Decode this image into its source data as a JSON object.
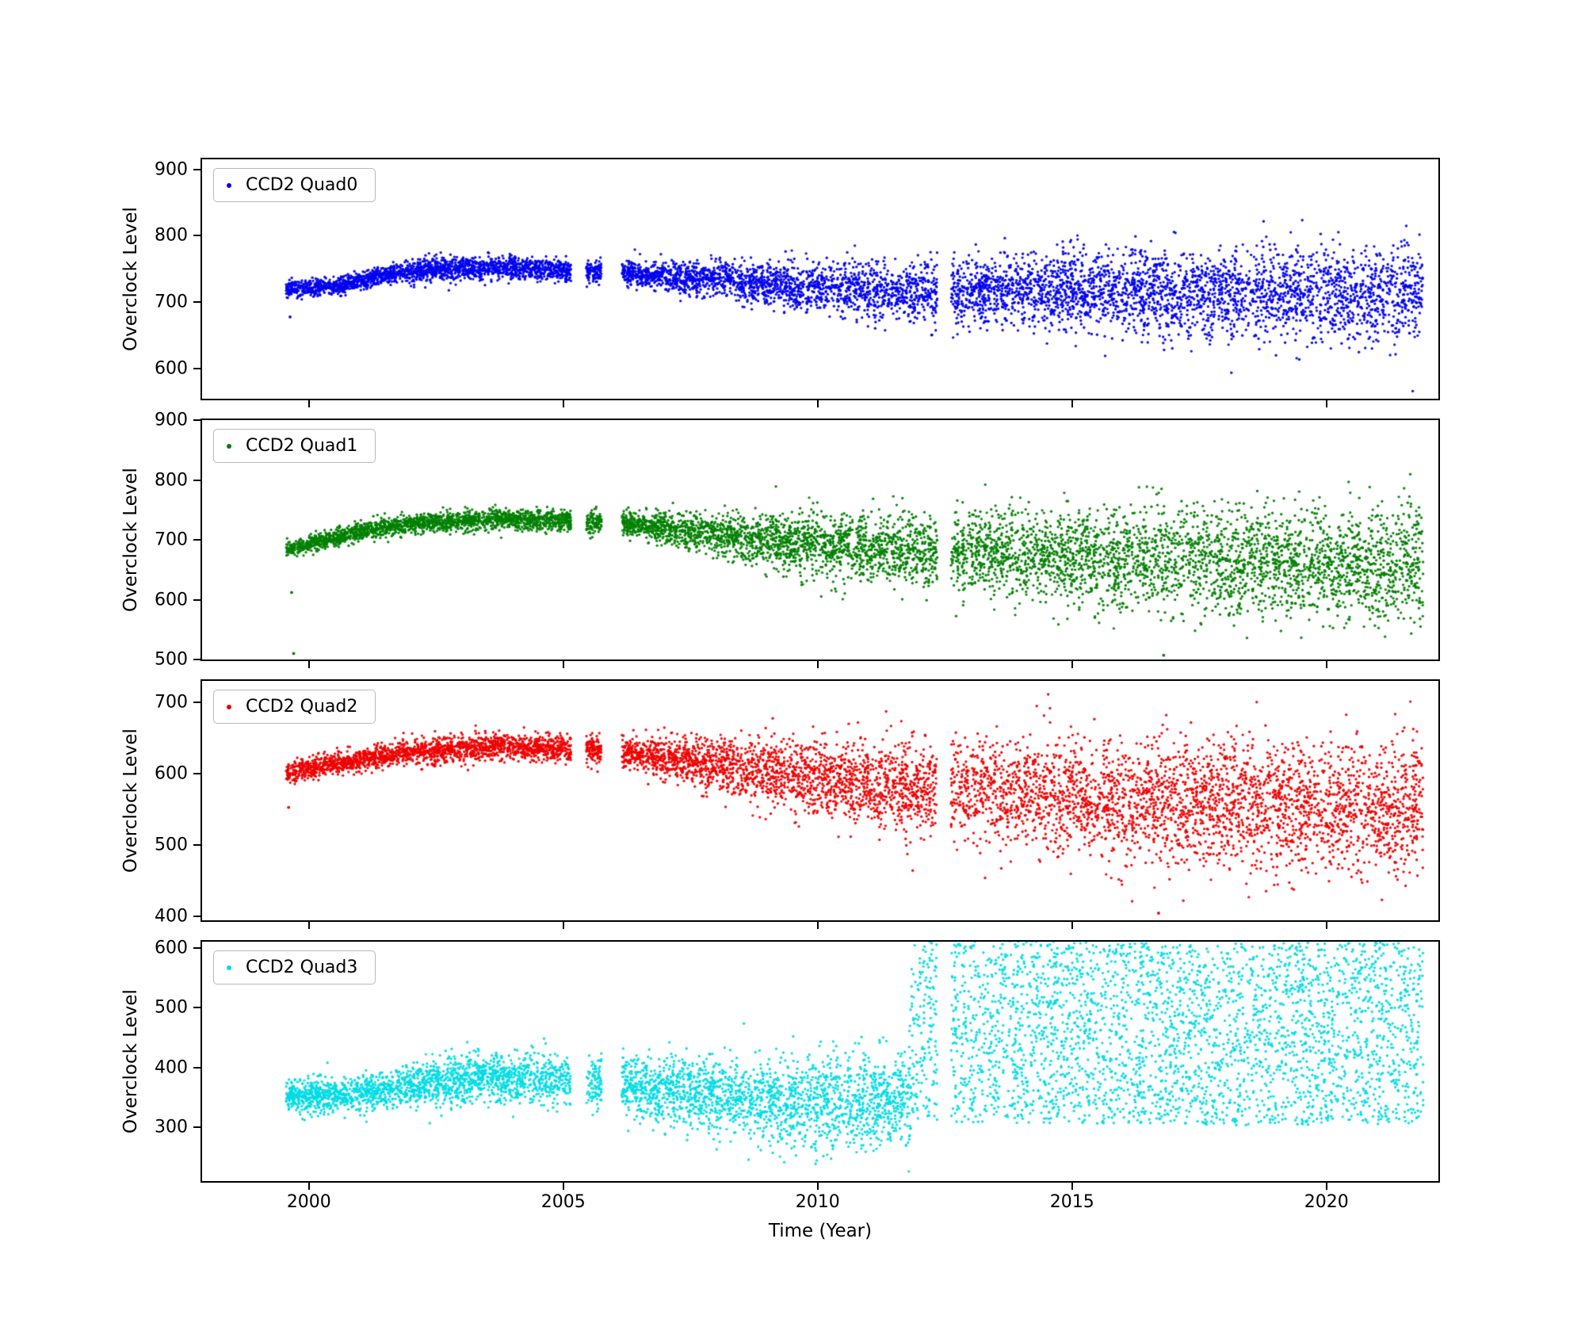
{
  "figure": {
    "background": "#ffffff",
    "frame_color": "#000000"
  },
  "chart_data": {
    "type": "scatter",
    "title": "",
    "xlabel": "Time (Year)",
    "ylabel": "Overclock Level",
    "xlim": [
      1997.9,
      2022.2
    ],
    "x_ticks": [
      2000,
      2005,
      2010,
      2015,
      2020
    ],
    "x_data_range": [
      1999.55,
      2021.9
    ],
    "x_gaps": [
      [
        2005.15,
        2005.45
      ],
      [
        2005.75,
        2006.15
      ],
      [
        2012.35,
        2012.62
      ]
    ],
    "points_per_year": 330,
    "marker": "dot",
    "legend_position": "upper left",
    "grid": false,
    "panels": [
      {
        "legend": "CCD2 Quad0",
        "color": "#0101EF",
        "ylim": [
          555,
          915
        ],
        "y_ticks": [
          600,
          700,
          800,
          900
        ],
        "envelope": [
          [
            1999.55,
            720,
            13
          ],
          [
            2000.6,
            725,
            13
          ],
          [
            2001.4,
            740,
            15
          ],
          [
            2002.5,
            750,
            17
          ],
          [
            2004.0,
            752,
            17
          ],
          [
            2005.1,
            748,
            16
          ],
          [
            2006.3,
            744,
            18
          ],
          [
            2007.5,
            737,
            25
          ],
          [
            2009.0,
            728,
            33
          ],
          [
            2010.5,
            720,
            38
          ],
          [
            2012.0,
            714,
            44
          ],
          [
            2013.5,
            718,
            50
          ],
          [
            2015.0,
            717,
            58
          ],
          [
            2017.0,
            714,
            64
          ],
          [
            2019.0,
            714,
            68
          ],
          [
            2021.9,
            712,
            70
          ]
        ],
        "outliers": [
          [
            1999.63,
            678
          ]
        ],
        "uniform_after": null
      },
      {
        "legend": "CCD2 Quad1",
        "color": "#008000",
        "ylim": [
          500,
          900
        ],
        "y_ticks": [
          500,
          600,
          700,
          800,
          900
        ],
        "envelope": [
          [
            1999.55,
            683,
            13
          ],
          [
            2000.2,
            697,
            14
          ],
          [
            2001.0,
            714,
            15
          ],
          [
            2002.0,
            727,
            16
          ],
          [
            2003.5,
            734,
            18
          ],
          [
            2005.1,
            732,
            18
          ],
          [
            2006.3,
            726,
            20
          ],
          [
            2007.5,
            714,
            30
          ],
          [
            2009.0,
            700,
            45
          ],
          [
            2010.5,
            690,
            55
          ],
          [
            2012.0,
            682,
            62
          ],
          [
            2013.5,
            678,
            72
          ],
          [
            2015.0,
            672,
            82
          ],
          [
            2017.0,
            665,
            90
          ],
          [
            2019.0,
            660,
            95
          ],
          [
            2021.9,
            657,
            97
          ]
        ],
        "outliers": [
          [
            1999.66,
            612
          ],
          [
            1999.7,
            510
          ],
          [
            2016.8,
            507
          ]
        ],
        "uniform_after": null
      },
      {
        "legend": "CCD2 Quad2",
        "color": "#EE0000",
        "ylim": [
          395,
          730
        ],
        "y_ticks": [
          400,
          500,
          600,
          700
        ],
        "envelope": [
          [
            1999.55,
            600,
            14
          ],
          [
            2000.2,
            610,
            14
          ],
          [
            2001.0,
            620,
            16
          ],
          [
            2002.0,
            630,
            18
          ],
          [
            2003.5,
            638,
            19
          ],
          [
            2005.1,
            635,
            19
          ],
          [
            2006.3,
            630,
            21
          ],
          [
            2007.5,
            618,
            32
          ],
          [
            2009.0,
            602,
            46
          ],
          [
            2010.5,
            590,
            55
          ],
          [
            2012.0,
            582,
            62
          ],
          [
            2013.5,
            576,
            70
          ],
          [
            2015.0,
            568,
            80
          ],
          [
            2017.0,
            560,
            88
          ],
          [
            2019.0,
            555,
            92
          ],
          [
            2021.9,
            552,
            93
          ]
        ],
        "outliers": [
          [
            1999.6,
            553
          ],
          [
            2016.7,
            405
          ]
        ],
        "uniform_after": null
      },
      {
        "legend": "CCD2 Quad3",
        "color": "#00DCE4",
        "ylim": [
          210,
          610
        ],
        "y_ticks": [
          300,
          400,
          500,
          600
        ],
        "envelope": [
          [
            1999.55,
            352,
            28
          ],
          [
            2000.5,
            352,
            28
          ],
          [
            2001.5,
            360,
            33
          ],
          [
            2003.0,
            383,
            44
          ],
          [
            2004.5,
            380,
            44
          ],
          [
            2005.5,
            374,
            44
          ],
          [
            2006.5,
            366,
            50
          ],
          [
            2008.0,
            352,
            64
          ],
          [
            2009.5,
            340,
            76
          ],
          [
            2011.0,
            342,
            80
          ],
          [
            2011.78,
            345,
            80
          ],
          [
            2011.86,
            470,
            155
          ],
          [
            2013.0,
            462,
            155
          ],
          [
            2015.0,
            458,
            152
          ],
          [
            2018.0,
            455,
            152
          ],
          [
            2021.9,
            458,
            152
          ]
        ],
        "outliers": [],
        "uniform_after": 2011.8
      }
    ]
  }
}
